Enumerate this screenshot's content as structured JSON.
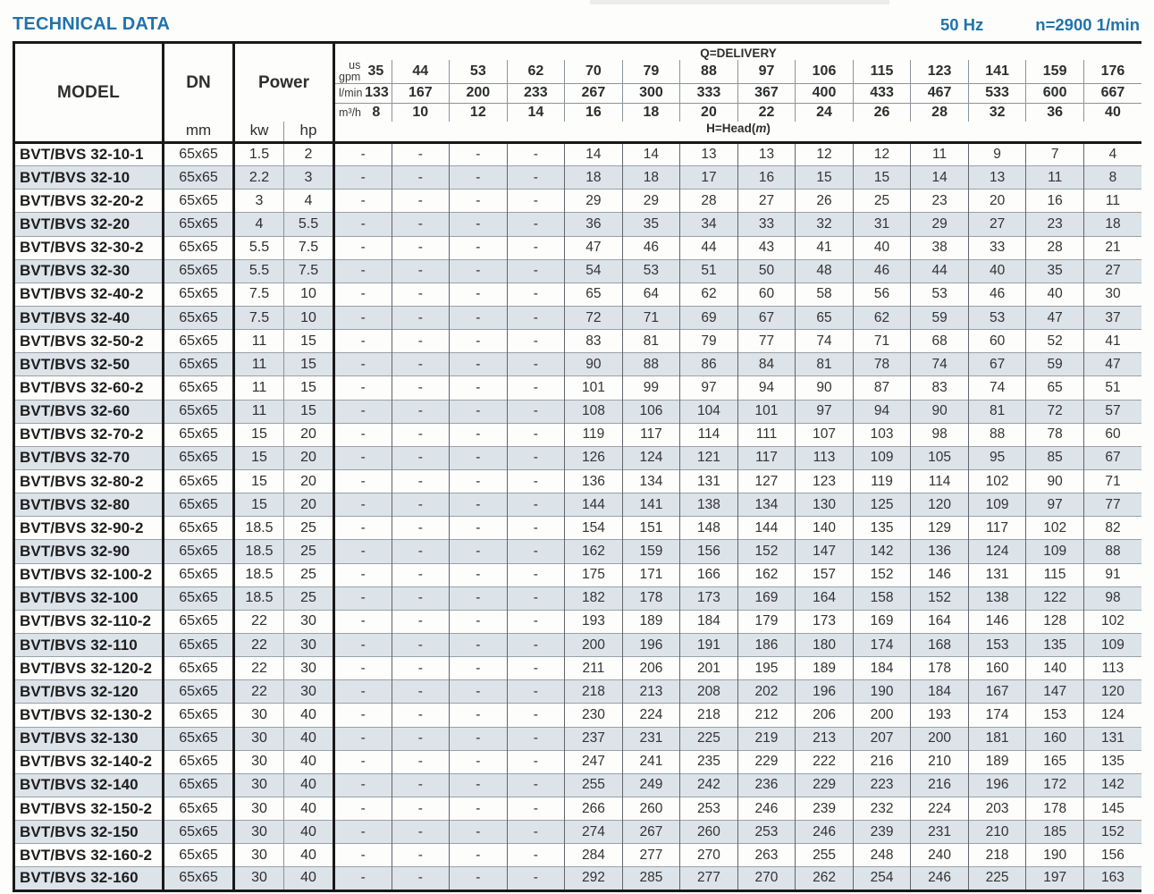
{
  "page": {
    "title": "TECHNICAL DATA",
    "frequency": "50 Hz",
    "speed": "n=2900 1/min"
  },
  "colors": {
    "accent_blue": "#2273a9",
    "row_alt": "#dce3e9",
    "border_dark": "#191919",
    "border_light": "#8d949a"
  },
  "table": {
    "model_header": "MODEL",
    "dn_header": "DN",
    "dn_unit": "mm",
    "power_header": "Power",
    "power_unit_kw": "kw",
    "power_unit_hp": "hp",
    "delivery_title": "Q=DELIVERY",
    "head_prefix": "H=Head(",
    "head_unit_italic": "m",
    "head_suffix": ")",
    "unit_rows": [
      {
        "label": "us\ngpm",
        "values": [
          "35",
          "44",
          "53",
          "62",
          "70",
          "79",
          "88",
          "97",
          "106",
          "115",
          "123",
          "141",
          "159",
          "176"
        ]
      },
      {
        "label": "l/min",
        "values": [
          "133",
          "167",
          "200",
          "233",
          "267",
          "300",
          "333",
          "367",
          "400",
          "433",
          "467",
          "533",
          "600",
          "667"
        ]
      },
      {
        "label": "m³/h",
        "values": [
          "8",
          "10",
          "12",
          "14",
          "16",
          "18",
          "20",
          "22",
          "24",
          "26",
          "28",
          "32",
          "36",
          "40"
        ]
      }
    ],
    "rows": [
      {
        "model": "BVT/BVS 32-10-1",
        "dn": "65x65",
        "kw": "1.5",
        "hp": "2",
        "head": [
          "-",
          "-",
          "-",
          "-",
          "14",
          "14",
          "13",
          "13",
          "12",
          "12",
          "11",
          "9",
          "7",
          "4"
        ]
      },
      {
        "model": "BVT/BVS 32-10",
        "dn": "65x65",
        "kw": "2.2",
        "hp": "3",
        "head": [
          "-",
          "-",
          "-",
          "-",
          "18",
          "18",
          "17",
          "16",
          "15",
          "15",
          "14",
          "13",
          "11",
          "8"
        ]
      },
      {
        "model": "BVT/BVS 32-20-2",
        "dn": "65x65",
        "kw": "3",
        "hp": "4",
        "head": [
          "-",
          "-",
          "-",
          "-",
          "29",
          "29",
          "28",
          "27",
          "26",
          "25",
          "23",
          "20",
          "16",
          "11"
        ]
      },
      {
        "model": "BVT/BVS 32-20",
        "dn": "65x65",
        "kw": "4",
        "hp": "5.5",
        "head": [
          "-",
          "-",
          "-",
          "-",
          "36",
          "35",
          "34",
          "33",
          "32",
          "31",
          "29",
          "27",
          "23",
          "18"
        ]
      },
      {
        "model": "BVT/BVS 32-30-2",
        "dn": "65x65",
        "kw": "5.5",
        "hp": "7.5",
        "head": [
          "-",
          "-",
          "-",
          "-",
          "47",
          "46",
          "44",
          "43",
          "41",
          "40",
          "38",
          "33",
          "28",
          "21"
        ]
      },
      {
        "model": "BVT/BVS 32-30",
        "dn": "65x65",
        "kw": "5.5",
        "hp": "7.5",
        "head": [
          "-",
          "-",
          "-",
          "-",
          "54",
          "53",
          "51",
          "50",
          "48",
          "46",
          "44",
          "40",
          "35",
          "27"
        ]
      },
      {
        "model": "BVT/BVS 32-40-2",
        "dn": "65x65",
        "kw": "7.5",
        "hp": "10",
        "head": [
          "-",
          "-",
          "-",
          "-",
          "65",
          "64",
          "62",
          "60",
          "58",
          "56",
          "53",
          "46",
          "40",
          "30"
        ]
      },
      {
        "model": "BVT/BVS 32-40",
        "dn": "65x65",
        "kw": "7.5",
        "hp": "10",
        "head": [
          "-",
          "-",
          "-",
          "-",
          "72",
          "71",
          "69",
          "67",
          "65",
          "62",
          "59",
          "53",
          "47",
          "37"
        ]
      },
      {
        "model": "BVT/BVS 32-50-2",
        "dn": "65x65",
        "kw": "11",
        "hp": "15",
        "head": [
          "-",
          "-",
          "-",
          "-",
          "83",
          "81",
          "79",
          "77",
          "74",
          "71",
          "68",
          "60",
          "52",
          "41"
        ]
      },
      {
        "model": "BVT/BVS 32-50",
        "dn": "65x65",
        "kw": "11",
        "hp": "15",
        "head": [
          "-",
          "-",
          "-",
          "-",
          "90",
          "88",
          "86",
          "84",
          "81",
          "78",
          "74",
          "67",
          "59",
          "47"
        ]
      },
      {
        "model": "BVT/BVS 32-60-2",
        "dn": "65x65",
        "kw": "11",
        "hp": "15",
        "head": [
          "-",
          "-",
          "-",
          "-",
          "101",
          "99",
          "97",
          "94",
          "90",
          "87",
          "83",
          "74",
          "65",
          "51"
        ]
      },
      {
        "model": "BVT/BVS 32-60",
        "dn": "65x65",
        "kw": "11",
        "hp": "15",
        "head": [
          "-",
          "-",
          "-",
          "-",
          "108",
          "106",
          "104",
          "101",
          "97",
          "94",
          "90",
          "81",
          "72",
          "57"
        ]
      },
      {
        "model": "BVT/BVS 32-70-2",
        "dn": "65x65",
        "kw": "15",
        "hp": "20",
        "head": [
          "-",
          "-",
          "-",
          "-",
          "119",
          "117",
          "114",
          "111",
          "107",
          "103",
          "98",
          "88",
          "78",
          "60"
        ]
      },
      {
        "model": "BVT/BVS 32-70",
        "dn": "65x65",
        "kw": "15",
        "hp": "20",
        "head": [
          "-",
          "-",
          "-",
          "-",
          "126",
          "124",
          "121",
          "117",
          "113",
          "109",
          "105",
          "95",
          "85",
          "67"
        ]
      },
      {
        "model": "BVT/BVS 32-80-2",
        "dn": "65x65",
        "kw": "15",
        "hp": "20",
        "head": [
          "-",
          "-",
          "-",
          "-",
          "136",
          "134",
          "131",
          "127",
          "123",
          "119",
          "114",
          "102",
          "90",
          "71"
        ]
      },
      {
        "model": "BVT/BVS 32-80",
        "dn": "65x65",
        "kw": "15",
        "hp": "20",
        "head": [
          "-",
          "-",
          "-",
          "-",
          "144",
          "141",
          "138",
          "134",
          "130",
          "125",
          "120",
          "109",
          "97",
          "77"
        ]
      },
      {
        "model": "BVT/BVS 32-90-2",
        "dn": "65x65",
        "kw": "18.5",
        "hp": "25",
        "head": [
          "-",
          "-",
          "-",
          "-",
          "154",
          "151",
          "148",
          "144",
          "140",
          "135",
          "129",
          "117",
          "102",
          "82"
        ]
      },
      {
        "model": "BVT/BVS 32-90",
        "dn": "65x65",
        "kw": "18.5",
        "hp": "25",
        "head": [
          "-",
          "-",
          "-",
          "-",
          "162",
          "159",
          "156",
          "152",
          "147",
          "142",
          "136",
          "124",
          "109",
          "88"
        ]
      },
      {
        "model": "BVT/BVS 32-100-2",
        "dn": "65x65",
        "kw": "18.5",
        "hp": "25",
        "head": [
          "-",
          "-",
          "-",
          "-",
          "175",
          "171",
          "166",
          "162",
          "157",
          "152",
          "146",
          "131",
          "115",
          "91"
        ]
      },
      {
        "model": "BVT/BVS 32-100",
        "dn": "65x65",
        "kw": "18.5",
        "hp": "25",
        "head": [
          "-",
          "-",
          "-",
          "-",
          "182",
          "178",
          "173",
          "169",
          "164",
          "158",
          "152",
          "138",
          "122",
          "98"
        ]
      },
      {
        "model": "BVT/BVS 32-110-2",
        "dn": "65x65",
        "kw": "22",
        "hp": "30",
        "head": [
          "-",
          "-",
          "-",
          "-",
          "193",
          "189",
          "184",
          "179",
          "173",
          "169",
          "164",
          "146",
          "128",
          "102"
        ]
      },
      {
        "model": "BVT/BVS 32-110",
        "dn": "65x65",
        "kw": "22",
        "hp": "30",
        "head": [
          "-",
          "-",
          "-",
          "-",
          "200",
          "196",
          "191",
          "186",
          "180",
          "174",
          "168",
          "153",
          "135",
          "109"
        ]
      },
      {
        "model": "BVT/BVS 32-120-2",
        "dn": "65x65",
        "kw": "22",
        "hp": "30",
        "head": [
          "-",
          "-",
          "-",
          "-",
          "211",
          "206",
          "201",
          "195",
          "189",
          "184",
          "178",
          "160",
          "140",
          "113"
        ]
      },
      {
        "model": "BVT/BVS 32-120",
        "dn": "65x65",
        "kw": "22",
        "hp": "30",
        "head": [
          "-",
          "-",
          "-",
          "-",
          "218",
          "213",
          "208",
          "202",
          "196",
          "190",
          "184",
          "167",
          "147",
          "120"
        ]
      },
      {
        "model": "BVT/BVS 32-130-2",
        "dn": "65x65",
        "kw": "30",
        "hp": "40",
        "head": [
          "-",
          "-",
          "-",
          "-",
          "230",
          "224",
          "218",
          "212",
          "206",
          "200",
          "193",
          "174",
          "153",
          "124"
        ]
      },
      {
        "model": "BVT/BVS 32-130",
        "dn": "65x65",
        "kw": "30",
        "hp": "40",
        "head": [
          "-",
          "-",
          "-",
          "-",
          "237",
          "231",
          "225",
          "219",
          "213",
          "207",
          "200",
          "181",
          "160",
          "131"
        ]
      },
      {
        "model": "BVT/BVS 32-140-2",
        "dn": "65x65",
        "kw": "30",
        "hp": "40",
        "head": [
          "-",
          "-",
          "-",
          "-",
          "247",
          "241",
          "235",
          "229",
          "222",
          "216",
          "210",
          "189",
          "165",
          "135"
        ]
      },
      {
        "model": "BVT/BVS 32-140",
        "dn": "65x65",
        "kw": "30",
        "hp": "40",
        "head": [
          "-",
          "-",
          "-",
          "-",
          "255",
          "249",
          "242",
          "236",
          "229",
          "223",
          "216",
          "196",
          "172",
          "142"
        ]
      },
      {
        "model": "BVT/BVS 32-150-2",
        "dn": "65x65",
        "kw": "30",
        "hp": "40",
        "head": [
          "-",
          "-",
          "-",
          "-",
          "266",
          "260",
          "253",
          "246",
          "239",
          "232",
          "224",
          "203",
          "178",
          "145"
        ]
      },
      {
        "model": "BVT/BVS 32-150",
        "dn": "65x65",
        "kw": "30",
        "hp": "40",
        "head": [
          "-",
          "-",
          "-",
          "-",
          "274",
          "267",
          "260",
          "253",
          "246",
          "239",
          "231",
          "210",
          "185",
          "152"
        ]
      },
      {
        "model": "BVT/BVS 32-160-2",
        "dn": "65x65",
        "kw": "30",
        "hp": "40",
        "head": [
          "-",
          "-",
          "-",
          "-",
          "284",
          "277",
          "270",
          "263",
          "255",
          "248",
          "240",
          "218",
          "190",
          "156"
        ]
      },
      {
        "model": "BVT/BVS 32-160",
        "dn": "65x65",
        "kw": "30",
        "hp": "40",
        "head": [
          "-",
          "-",
          "-",
          "-",
          "292",
          "285",
          "277",
          "270",
          "262",
          "254",
          "246",
          "225",
          "197",
          "163"
        ]
      }
    ]
  }
}
